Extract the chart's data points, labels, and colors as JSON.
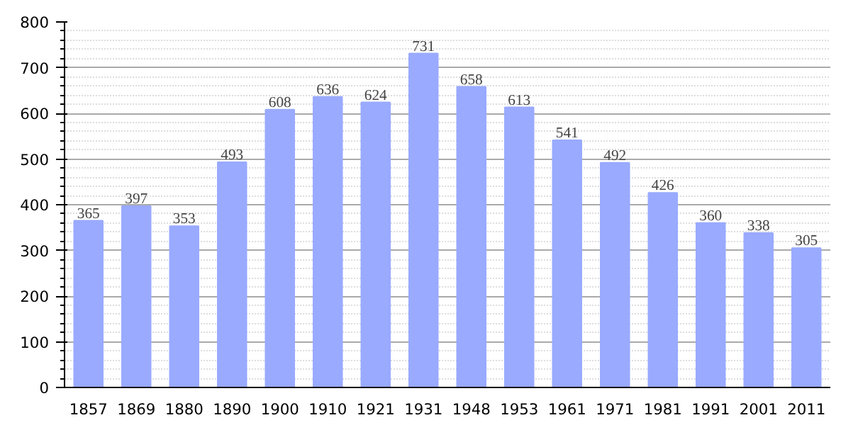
{
  "chart_data": {
    "type": "bar",
    "categories": [
      "1857",
      "1869",
      "1880",
      "1890",
      "1900",
      "1910",
      "1921",
      "1931",
      "1948",
      "1953",
      "1961",
      "1971",
      "1981",
      "1991",
      "2001",
      "2011"
    ],
    "values": [
      365,
      397,
      353,
      493,
      608,
      636,
      624,
      731,
      658,
      613,
      541,
      492,
      426,
      360,
      338,
      305
    ],
    "color": "#99aaff",
    "ylim": [
      0,
      800
    ],
    "yticks": [
      0,
      100,
      200,
      300,
      400,
      500,
      600,
      700,
      800
    ],
    "grid": "y",
    "data_labels": true
  }
}
